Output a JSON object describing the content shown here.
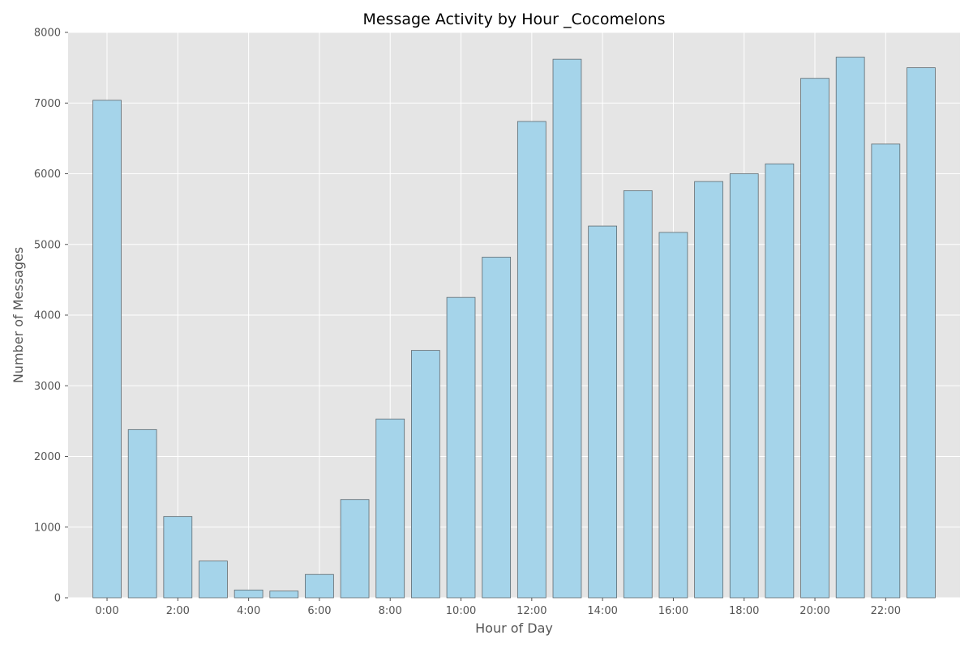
{
  "chart_data": {
    "type": "bar",
    "title": "Message Activity by Hour _Cocomelons",
    "xlabel": "Hour of Day",
    "ylabel": "Number of Messages",
    "x": [
      0,
      1,
      2,
      3,
      4,
      5,
      6,
      7,
      8,
      9,
      10,
      11,
      12,
      13,
      14,
      15,
      16,
      17,
      18,
      19,
      20,
      21,
      22,
      23
    ],
    "values": [
      7040,
      2380,
      1150,
      520,
      110,
      95,
      330,
      1390,
      2530,
      3500,
      4250,
      4820,
      6740,
      7620,
      5260,
      5760,
      5170,
      5890,
      6000,
      6140,
      7350,
      7650,
      6420,
      7500
    ],
    "xticks": [
      0,
      2,
      4,
      6,
      8,
      10,
      12,
      14,
      16,
      18,
      20,
      22
    ],
    "xtick_labels": [
      "0:00",
      "2:00",
      "4:00",
      "6:00",
      "8:00",
      "10:00",
      "12:00",
      "14:00",
      "16:00",
      "18:00",
      "20:00",
      "22:00"
    ],
    "yticks": [
      0,
      1000,
      2000,
      3000,
      4000,
      5000,
      6000,
      7000,
      8000
    ],
    "ytick_labels": [
      "0",
      "1000",
      "2000",
      "3000",
      "4000",
      "5000",
      "6000",
      "7000",
      "8000"
    ],
    "xlim": [
      -1.1,
      24.1
    ],
    "ylim": [
      0,
      8000
    ],
    "grid": true,
    "colors": {
      "bar_fill": "#a5d4ea",
      "bar_edge": "#5f6a70",
      "plot_background": "#e5e5e5",
      "grid": "#ffffff"
    }
  }
}
